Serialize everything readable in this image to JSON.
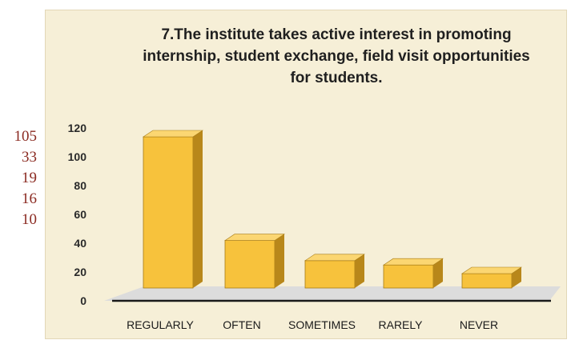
{
  "chart_data": {
    "type": "bar",
    "title": "7.The institute takes active interest in promoting\ninternship, student exchange, field visit opportunities\nfor students.",
    "categories": [
      "REGULARLY",
      "OFTEN",
      "SOMETIMES",
      "RARELY",
      "NEVER"
    ],
    "values": [
      105,
      33,
      19,
      16,
      10
    ],
    "ylim": [
      0,
      120
    ],
    "yticks": [
      0,
      20,
      40,
      60,
      80,
      100,
      120
    ],
    "grid": false,
    "legend": "none",
    "bar_color": "#f7c23c",
    "floor_color": "#dcdcdc"
  },
  "side_notes": [
    "105",
    "33",
    "19",
    "16",
    "10"
  ]
}
